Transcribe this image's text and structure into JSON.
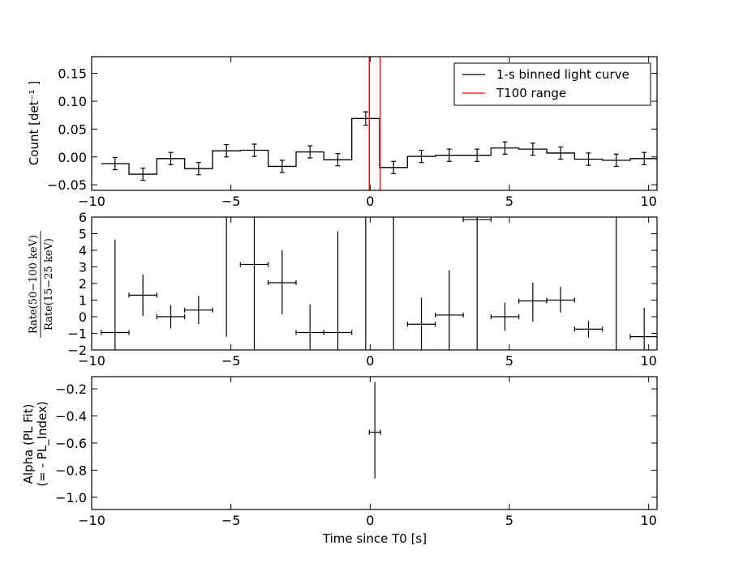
{
  "chart_data": [
    {
      "type": "line",
      "panel": "light-curve",
      "xlim": [
        -10,
        10.3
      ],
      "ylim": [
        -0.06,
        0.18
      ],
      "xticks": [
        -10,
        -5,
        0,
        5,
        10
      ],
      "xtick_labels": [
        "−10",
        "−5",
        "0",
        "5",
        "10"
      ],
      "yticks": [
        -0.05,
        0.0,
        0.05,
        0.1,
        0.15
      ],
      "ytick_labels": [
        "−0.05",
        "0.00",
        "0.05",
        "0.10",
        "0.15"
      ],
      "ylabel": "Count [det⁻¹ ]",
      "legend_position": "top-right",
      "series": [
        {
          "name": "1-s binned light curve",
          "color": "#000000",
          "style": "step",
          "bin_edges": [
            -9.66,
            -8.66,
            -7.66,
            -6.66,
            -5.66,
            -4.66,
            -3.66,
            -2.66,
            -1.66,
            -0.66,
            0.34,
            1.34,
            2.34,
            3.34,
            4.34,
            5.34,
            6.34,
            7.34,
            8.34,
            9.34,
            10.3
          ],
          "x": [
            -9.16,
            -8.16,
            -7.16,
            -6.16,
            -5.16,
            -4.16,
            -3.16,
            -2.16,
            -1.16,
            -0.16,
            0.84,
            1.84,
            2.84,
            3.84,
            4.84,
            5.84,
            6.84,
            7.84,
            8.84,
            9.84
          ],
          "y": [
            -0.012,
            -0.031,
            -0.003,
            -0.021,
            0.011,
            0.012,
            -0.017,
            0.009,
            -0.005,
            0.069,
            -0.019,
            0.001,
            0.003,
            0.003,
            0.016,
            0.014,
            0.007,
            -0.004,
            -0.006,
            -0.003
          ],
          "yerr": [
            0.011,
            0.011,
            0.011,
            0.011,
            0.011,
            0.011,
            0.011,
            0.011,
            0.011,
            0.012,
            0.011,
            0.011,
            0.011,
            0.011,
            0.011,
            0.011,
            0.011,
            0.011,
            0.011,
            0.011
          ]
        },
        {
          "name": "T100 range",
          "color": "#ff0000",
          "style": "vlines",
          "x": [
            -0.03,
            0.36
          ]
        }
      ]
    },
    {
      "type": "scatter",
      "panel": "hardness-ratio",
      "xlim": [
        -10,
        10.3
      ],
      "ylim": [
        -2,
        6
      ],
      "xticks": [
        -10,
        -5,
        0,
        5,
        10
      ],
      "xtick_labels": [
        "−10",
        "−5",
        "0",
        "5",
        "10"
      ],
      "yticks": [
        -2,
        -1,
        0,
        1,
        2,
        3,
        4,
        5,
        6
      ],
      "ytick_labels": [
        "−2",
        "−1",
        "0",
        "1",
        "2",
        "3",
        "4",
        "5",
        "6"
      ],
      "ylabel_numerator": "Rate(50−100 keV)",
      "ylabel_denominator": "Rate(15−25 keV)",
      "series": [
        {
          "color": "#000000",
          "x": [
            -9.16,
            -8.16,
            -7.16,
            -6.16,
            -5.16,
            -4.16,
            -3.16,
            -2.16,
            -1.16,
            -0.16,
            0.84,
            1.84,
            2.84,
            3.84,
            4.84,
            5.84,
            6.84,
            7.84,
            8.84,
            9.84
          ],
          "y": [
            -0.95,
            1.3,
            0.0,
            0.4,
            6.0,
            3.15,
            2.05,
            -0.95,
            -0.95,
            6.0,
            6.0,
            -0.45,
            0.1,
            5.85,
            0.0,
            0.95,
            1.0,
            -0.75,
            6.0,
            -1.2
          ],
          "yerr_low": [
            1.05,
            1.25,
            0.7,
            0.85,
            7.2,
            5.2,
            1.9,
            1.05,
            1.05,
            8.0,
            8.0,
            1.55,
            2.1,
            7.85,
            0.85,
            1.25,
            0.75,
            0.5,
            8.0,
            0.8
          ],
          "yerr_high": [
            5.6,
            1.25,
            0.7,
            0.85,
            0.0,
            2.85,
            1.95,
            1.7,
            6.1,
            0.0,
            0.0,
            1.6,
            2.7,
            0.15,
            0.85,
            1.1,
            0.8,
            0.5,
            0.0,
            1.75
          ],
          "xerr": [
            0.5,
            0.5,
            0.5,
            0.5,
            0.0,
            0.5,
            0.5,
            0.5,
            0.5,
            0.0,
            0.0,
            0.5,
            0.5,
            0.5,
            0.5,
            0.5,
            0.5,
            0.5,
            0.0,
            0.5
          ]
        }
      ]
    },
    {
      "type": "scatter",
      "panel": "photon-index",
      "xlim": [
        -10,
        10.3
      ],
      "ylim": [
        -1.09,
        -0.11
      ],
      "xticks": [
        -10,
        -5,
        0,
        5,
        10
      ],
      "xtick_labels": [
        "−10",
        "−5",
        "0",
        "5",
        "10"
      ],
      "yticks": [
        -1.0,
        -0.8,
        -0.6,
        -0.4,
        -0.2
      ],
      "ytick_labels": [
        "−1.0",
        "−0.8",
        "−0.6",
        "−0.4",
        "−0.2"
      ],
      "ylabel_line1": "Alpha (PL Fit)",
      "ylabel_line2": "(= - PL_Index)",
      "xlabel": "Time since T0 [s]",
      "series": [
        {
          "color": "#000000",
          "x": [
            0.17
          ],
          "y": [
            -0.52
          ],
          "yerr_low": [
            0.34
          ],
          "yerr_high": [
            0.37
          ],
          "xerr": [
            0.2
          ]
        }
      ]
    }
  ]
}
